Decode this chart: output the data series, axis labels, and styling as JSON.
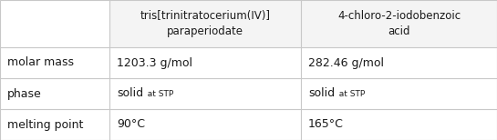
{
  "col_headers": [
    "tris[trinitratocerium(IV)]\nparaperiodate",
    "4-chloro-2-iodobenzoic\nacid"
  ],
  "row_headers": [
    "molar mass",
    "phase",
    "melting point"
  ],
  "cells": [
    [
      "1203.3 g/mol",
      "282.46 g/mol"
    ],
    [
      "solid",
      "solid"
    ],
    [
      "90°C",
      "165°C"
    ]
  ],
  "phase_note": "at STP",
  "bg_color": "#ffffff",
  "header_bg": "#f4f4f4",
  "line_color": "#c8c8c8",
  "text_color": "#1a1a1a",
  "header_fontsize": 8.5,
  "cell_fontsize": 9.0,
  "row_header_fontsize": 9.0,
  "small_fontsize": 6.5
}
